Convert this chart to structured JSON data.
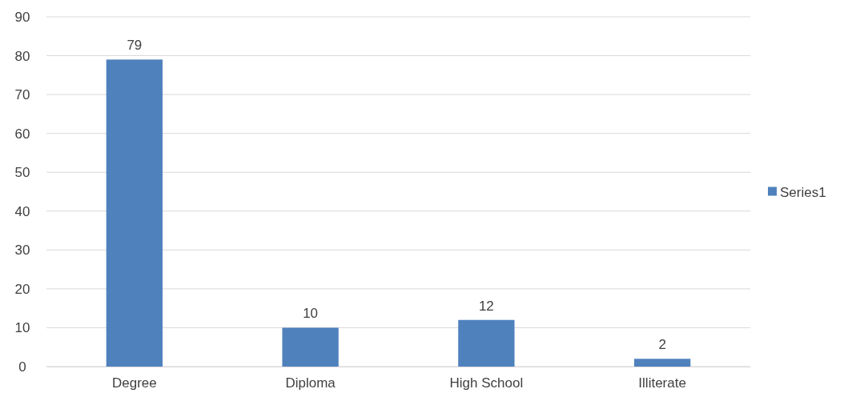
{
  "chart_data": {
    "type": "bar",
    "categories": [
      "Degree",
      "Diploma",
      "High School",
      "Illiterate"
    ],
    "series": [
      {
        "name": "Series1",
        "color": "#4f81bd",
        "values": [
          79,
          10,
          12,
          2
        ]
      }
    ],
    "ylim": [
      0,
      90
    ],
    "yticks": [
      0,
      10,
      20,
      30,
      40,
      50,
      60,
      70,
      80,
      90
    ],
    "grid": "y",
    "legend": "right",
    "data_labels": true
  }
}
